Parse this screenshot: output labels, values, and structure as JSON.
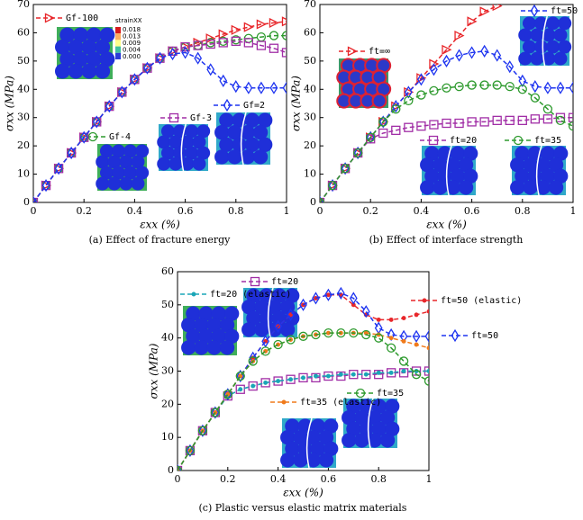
{
  "chart_data": [
    {
      "type": "line",
      "caption": "(a) Effect of fracture energy",
      "xlabel": "εxx (%)",
      "ylabel": "σxx (MPa)",
      "xlim": [
        0,
        1
      ],
      "ylim": [
        0,
        70
      ],
      "xticks": [
        0,
        0.2,
        0.4,
        0.6,
        0.8,
        1
      ],
      "yticks": [
        0,
        10,
        20,
        30,
        40,
        50,
        60,
        70
      ],
      "colorbar": {
        "title": "strainXX",
        "ticks": [
          "0.018",
          "0.013",
          "0.009",
          "0.004",
          "0.000"
        ]
      },
      "x": [
        0,
        0.05,
        0.1,
        0.15,
        0.2,
        0.25,
        0.3,
        0.35,
        0.4,
        0.45,
        0.5,
        0.55,
        0.6,
        0.65,
        0.7,
        0.75,
        0.8,
        0.85,
        0.9,
        0.95,
        1
      ],
      "series": [
        {
          "name": "Gf-100",
          "color": "#e8262a",
          "marker": "triangle",
          "values": [
            0,
            6,
            12,
            17.5,
            23,
            28.5,
            34,
            39,
            43.5,
            47.5,
            51,
            53.5,
            55,
            56.5,
            58,
            59.5,
            61,
            62,
            63,
            63.5,
            64
          ]
        },
        {
          "name": "Gf-4",
          "color": "#2e9a2e",
          "marker": "circle",
          "values": [
            0,
            6,
            12,
            17.5,
            23,
            28.5,
            34,
            39,
            43.5,
            47.5,
            51,
            53.5,
            55,
            55.5,
            56.5,
            57,
            57.5,
            58,
            58.5,
            59,
            59
          ]
        },
        {
          "name": "Gf-3",
          "color": "#a12ea6",
          "marker": "square",
          "values": [
            0,
            6,
            12,
            17.5,
            23,
            28.5,
            34,
            39,
            43.5,
            47.5,
            51,
            53.5,
            55,
            55.5,
            56,
            56.5,
            57,
            56.5,
            55.5,
            54.5,
            53
          ]
        },
        {
          "name": "Gf=2",
          "color": "#1f35f0",
          "marker": "diamond",
          "values": [
            0,
            6,
            12,
            17.5,
            23,
            28.5,
            34,
            39,
            43.5,
            47.5,
            51,
            52.5,
            53,
            51,
            47,
            43,
            41,
            40.5,
            40.5,
            40.5,
            40.5
          ]
        }
      ]
    },
    {
      "type": "line",
      "caption": "(b) Effect of interface strength",
      "xlabel": "εxx (%)",
      "ylabel": "σxx (MPa)",
      "xlim": [
        0,
        1
      ],
      "ylim": [
        0,
        70
      ],
      "xticks": [
        0,
        0.2,
        0.4,
        0.6,
        0.8,
        1
      ],
      "yticks": [
        0,
        10,
        20,
        30,
        40,
        50,
        60,
        70
      ],
      "x": [
        0,
        0.05,
        0.1,
        0.15,
        0.2,
        0.25,
        0.3,
        0.35,
        0.4,
        0.45,
        0.5,
        0.55,
        0.6,
        0.65,
        0.7,
        0.75,
        0.8,
        0.85,
        0.9,
        0.95,
        1
      ],
      "series": [
        {
          "name": "ft=∞",
          "color": "#e8262a",
          "marker": "triangle",
          "values": [
            0,
            6,
            12,
            17.5,
            23,
            28.5,
            34,
            39,
            44,
            49,
            54,
            59,
            64,
            67.5,
            69.5,
            null,
            null,
            null,
            null,
            null,
            null
          ]
        },
        {
          "name": "ft=50",
          "color": "#1f35f0",
          "marker": "diamond",
          "values": [
            0,
            6,
            12,
            17.5,
            23,
            28.5,
            34,
            39,
            43.5,
            47,
            50,
            52,
            53,
            53.5,
            52,
            48,
            43,
            41,
            40.5,
            40.5,
            40.5
          ]
        },
        {
          "name": "ft=20",
          "color": "#a12ea6",
          "marker": "square",
          "values": [
            0,
            6,
            12,
            17.5,
            22.5,
            24.5,
            25.5,
            26.5,
            27,
            27.5,
            28,
            28,
            28.5,
            28.5,
            29,
            29,
            29,
            29.5,
            29.5,
            30,
            30
          ]
        },
        {
          "name": "ft=35",
          "color": "#2e9a2e",
          "marker": "circle",
          "values": [
            0,
            6,
            12,
            17.5,
            23,
            28.5,
            33,
            36,
            38,
            39.5,
            40.5,
            41,
            41.5,
            41.5,
            41.5,
            41,
            40,
            37,
            33,
            29,
            27
          ]
        }
      ]
    },
    {
      "type": "line",
      "caption": "(c) Plastic versus elastic matrix materials",
      "xlabel": "εxx (%)",
      "ylabel": "σxx (MPa)",
      "xlim": [
        0,
        1
      ],
      "ylim": [
        0,
        60
      ],
      "xticks": [
        0,
        0.2,
        0.4,
        0.6,
        0.8,
        1
      ],
      "yticks": [
        0,
        10,
        20,
        30,
        40,
        50,
        60
      ],
      "x": [
        0,
        0.05,
        0.1,
        0.15,
        0.2,
        0.25,
        0.3,
        0.35,
        0.4,
        0.45,
        0.5,
        0.55,
        0.6,
        0.65,
        0.7,
        0.75,
        0.8,
        0.85,
        0.9,
        0.95,
        1
      ],
      "series": [
        {
          "name": "ft=20",
          "color": "#a12ea6",
          "marker": "square",
          "values": [
            0,
            6,
            12,
            17.5,
            22.5,
            24.5,
            25.5,
            26.5,
            27,
            27.5,
            28,
            28,
            28.5,
            28.5,
            29,
            29,
            29,
            29.5,
            29.5,
            30,
            30
          ]
        },
        {
          "name": "ft=20 (elastic)",
          "color": "#1aa6b7",
          "marker": "dot",
          "values": [
            0,
            6,
            12,
            17.5,
            22.5,
            24.5,
            25.5,
            26.5,
            27,
            27.5,
            28,
            28.5,
            28.5,
            29,
            29,
            29,
            29.5,
            29.5,
            30,
            30,
            30
          ]
        },
        {
          "name": "ft=50 (elastic)",
          "color": "#e8262a",
          "marker": "dot",
          "values": [
            0,
            6,
            12,
            17.5,
            23,
            28.5,
            34,
            39,
            43.5,
            47,
            50,
            52,
            53,
            53,
            50,
            47,
            45.5,
            45.5,
            46,
            47,
            48
          ]
        },
        {
          "name": "ft=50",
          "color": "#1f35f0",
          "marker": "diamond",
          "values": [
            0,
            6,
            12,
            17.5,
            23,
            28.5,
            34,
            39,
            43.5,
            47,
            50,
            52,
            53,
            53.5,
            52,
            48,
            43,
            41,
            40.5,
            40.5,
            40.5
          ]
        },
        {
          "name": "ft=35 (elastic)",
          "color": "#f07a1a",
          "marker": "dot",
          "values": [
            0,
            6,
            12,
            17.5,
            23,
            28.5,
            33,
            36,
            38,
            39.5,
            40.5,
            41,
            41.5,
            41.5,
            41.5,
            41.5,
            41,
            40,
            39,
            38,
            37
          ]
        },
        {
          "name": "ft=35",
          "color": "#2e9a2e",
          "marker": "circle",
          "values": [
            0,
            6,
            12,
            17.5,
            23,
            28.5,
            33,
            36,
            38,
            39.5,
            40.5,
            41,
            41.5,
            41.5,
            41.5,
            41,
            40,
            37,
            33,
            29,
            27
          ]
        }
      ]
    }
  ]
}
